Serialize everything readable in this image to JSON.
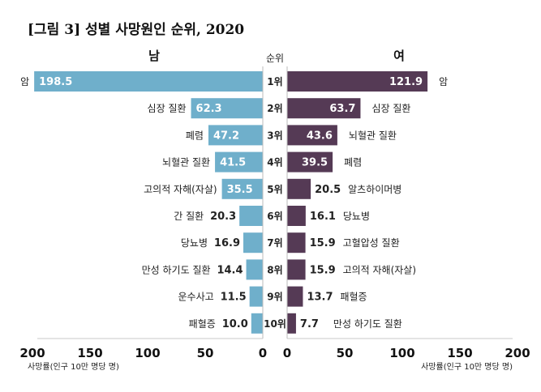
{
  "chart_data": {
    "type": "bar",
    "orientation": "horizontal-butterfly",
    "title": "[그림 3] 성별 사망원인 순위, 2020",
    "rank_header": "순위",
    "ranks": [
      "1위",
      "2위",
      "3위",
      "4위",
      "5위",
      "6위",
      "7위",
      "8위",
      "9위",
      "10위"
    ],
    "xlabel": "사망률(인구 10만 명당 명)",
    "xlim": [
      0,
      200
    ],
    "ticks": [
      0,
      50,
      100,
      150,
      200
    ],
    "series": [
      {
        "name": "남",
        "color": "#6FAFCB",
        "categories": [
          "암",
          "심장 질환",
          "폐렴",
          "뇌혈관 질환",
          "고의적 자해(자살)",
          "간 질환",
          "당뇨병",
          "만성 하기도 질환",
          "운수사고",
          "패혈증"
        ],
        "values": [
          198.5,
          62.3,
          47.2,
          41.5,
          35.5,
          20.3,
          16.9,
          14.4,
          11.5,
          10.0
        ]
      },
      {
        "name": "여",
        "color": "#553A55",
        "categories": [
          "암",
          "심장 질환",
          "뇌혈관 질환",
          "폐렴",
          "알츠하이머병",
          "당뇨병",
          "고혈압성 질환",
          "고의적 자해(자살)",
          "패혈증",
          "만성 하기도 질환"
        ],
        "values": [
          121.9,
          63.7,
          43.6,
          39.5,
          20.5,
          16.1,
          15.9,
          15.9,
          13.7,
          7.7
        ]
      }
    ],
    "value_label_colors": {
      "inside": "#ffffff",
      "outside": "#222222",
      "male_rank9": "#4a3a6a"
    }
  }
}
